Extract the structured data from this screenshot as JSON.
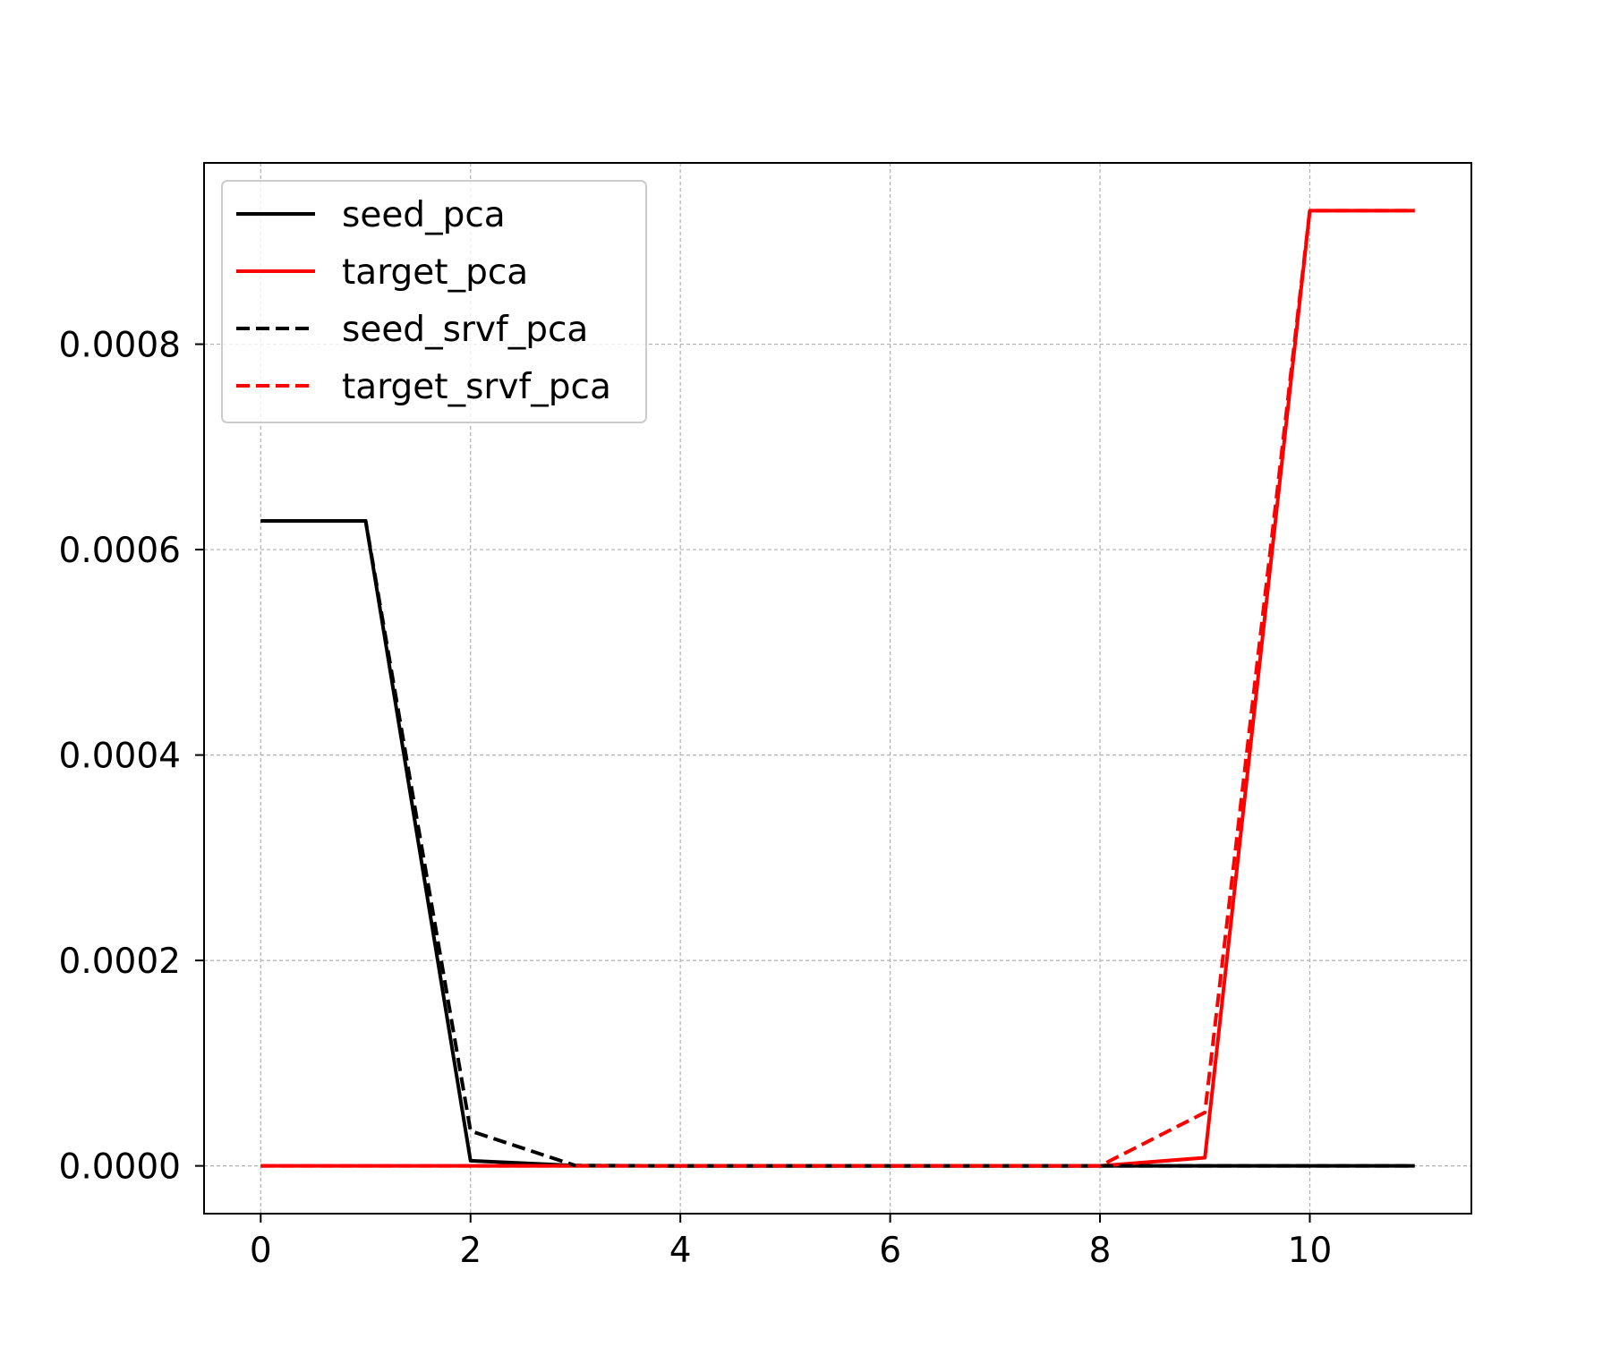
{
  "chart_data": {
    "type": "line",
    "title": "",
    "xlabel": "",
    "ylabel": "",
    "xlim": [
      -0.54,
      11.54
    ],
    "ylim": [
      -4.65e-05,
      0.0009765
    ],
    "x_ticks": [
      0,
      2,
      4,
      6,
      8,
      10
    ],
    "x_tick_labels": [
      "0",
      "2",
      "4",
      "6",
      "8",
      "10"
    ],
    "y_ticks": [
      0,
      0.0002,
      0.0004,
      0.0006,
      0.0008
    ],
    "y_tick_labels": [
      "0.0000",
      "0.0002",
      "0.0004",
      "0.0006",
      "0.0008"
    ],
    "grid": true,
    "legend_position": "top-left",
    "x": [
      0,
      1,
      2,
      3,
      4,
      5,
      6,
      7,
      8,
      9,
      10,
      11
    ],
    "series": [
      {
        "name": "seed_pca",
        "color": "#000000",
        "line_style": "solid",
        "values": [
          0.000628,
          0.000628,
          5e-06,
          3e-07,
          0,
          0,
          0,
          0,
          0,
          0,
          0,
          0
        ]
      },
      {
        "name": "target_pca",
        "color": "#ff0000",
        "line_style": "solid",
        "values": [
          0,
          0,
          0,
          0,
          0,
          0,
          0,
          0,
          0,
          8e-06,
          0.00093,
          0.00093
        ]
      },
      {
        "name": "seed_srvf_pca",
        "color": "#000000",
        "line_style": "dashed",
        "values": [
          0.000628,
          0.000628,
          3.4e-05,
          3e-07,
          0,
          0,
          0,
          0,
          0,
          0,
          0,
          0
        ]
      },
      {
        "name": "target_srvf_pca",
        "color": "#ff0000",
        "line_style": "dashed",
        "values": [
          0,
          0,
          0,
          0,
          0,
          0,
          0,
          0,
          0,
          5.2e-05,
          0.00093,
          0.00093
        ]
      }
    ]
  }
}
